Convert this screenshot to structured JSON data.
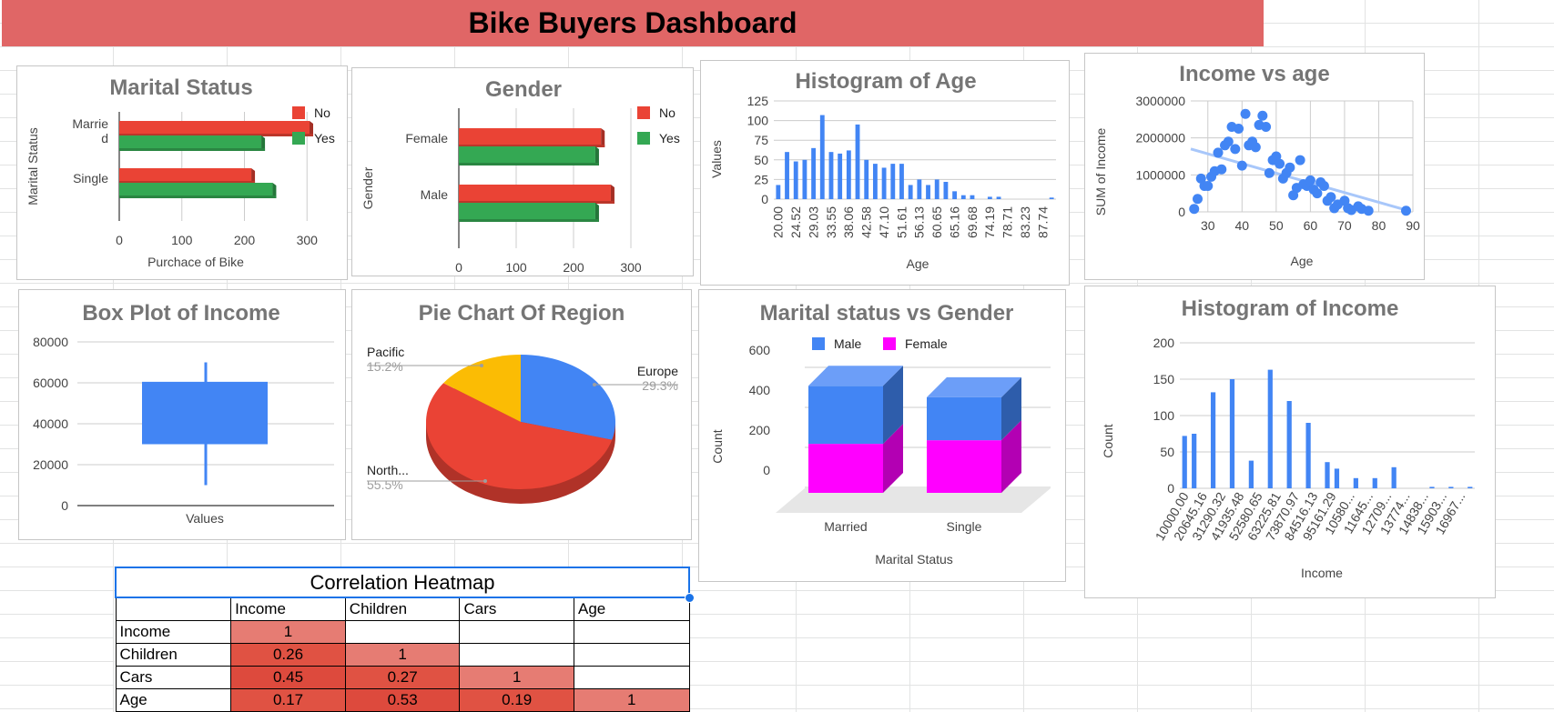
{
  "dashboard_title": "Bike Buyers Dashboard",
  "colors": {
    "red": "#ea4335",
    "green": "#34a853",
    "blue": "#4285f4",
    "yellow": "#fbbc04",
    "magenta": "#ff00ff",
    "banner": "#e06666"
  },
  "chart_data": [
    {
      "id": "marital",
      "type": "bar",
      "orientation": "horizontal",
      "title": "Marital Status",
      "categories": [
        "Marrie\nd",
        "Single"
      ],
      "series": [
        {
          "name": "No",
          "values": [
            304,
            211
          ]
        },
        {
          "name": "Yes",
          "values": [
            227,
            245
          ]
        }
      ],
      "xlabel": "Purchace of Bike",
      "ylabel": "Marital Status",
      "xlim": [
        0,
        400
      ],
      "xticks": [
        "0",
        "100",
        "200",
        "300",
        "400"
      ],
      "legend": "right"
    },
    {
      "id": "gender",
      "type": "bar",
      "orientation": "horizontal",
      "title": "Gender",
      "categories": [
        "Female",
        "Male"
      ],
      "series": [
        {
          "name": "No",
          "values": [
            248,
            265
          ]
        },
        {
          "name": "Yes",
          "values": [
            238,
            238
          ]
        }
      ],
      "xlabel": "",
      "ylabel": "Gender",
      "xlim": [
        0,
        300
      ],
      "xticks": [
        "0",
        "100",
        "200",
        "300"
      ],
      "legend": "right"
    },
    {
      "id": "age_hist",
      "type": "bar",
      "title": "Histogram of Age",
      "xlabel": "Age",
      "ylabel": "Values",
      "ylim": [
        0,
        125
      ],
      "yticks": [
        "0",
        "25",
        "50",
        "75",
        "100",
        "125"
      ],
      "xticks": [
        "20.00",
        "24.52",
        "29.03",
        "33.55",
        "38.06",
        "42.58",
        "47.10",
        "51.61",
        "56.13",
        "60.65",
        "65.16",
        "69.68",
        "74.19",
        "78.71",
        "83.23",
        "87.74"
      ],
      "values": [
        18,
        60,
        48,
        50,
        65,
        107,
        60,
        58,
        62,
        95,
        50,
        45,
        40,
        45,
        45,
        18,
        25,
        18,
        25,
        22,
        10,
        5,
        5,
        0,
        3,
        3,
        0,
        0,
        0,
        0,
        0,
        2
      ]
    },
    {
      "id": "income_age",
      "type": "scatter",
      "title": "Income vs age",
      "xlabel": "Age",
      "ylabel": "SUM of Income",
      "xlim": [
        25,
        90
      ],
      "xticks": [
        "30",
        "40",
        "50",
        "60",
        "70",
        "80",
        "90"
      ],
      "ylim": [
        0,
        3000000
      ],
      "yticks": [
        "0",
        "1000000",
        "2000000",
        "3000000"
      ],
      "points": [
        [
          26,
          80000
        ],
        [
          27,
          350000
        ],
        [
          28,
          900000
        ],
        [
          29,
          700000
        ],
        [
          30,
          700000
        ],
        [
          31,
          950000
        ],
        [
          32,
          1100000
        ],
        [
          33,
          1600000
        ],
        [
          34,
          1150000
        ],
        [
          35,
          1800000
        ],
        [
          36,
          1900000
        ],
        [
          37,
          2300000
        ],
        [
          38,
          1700000
        ],
        [
          39,
          2250000
        ],
        [
          40,
          1250000
        ],
        [
          41,
          2650000
        ],
        [
          42,
          1800000
        ],
        [
          43,
          1900000
        ],
        [
          44,
          1750000
        ],
        [
          45,
          2350000
        ],
        [
          46,
          2600000
        ],
        [
          47,
          2300000
        ],
        [
          48,
          1050000
        ],
        [
          49,
          1400000
        ],
        [
          50,
          1500000
        ],
        [
          51,
          1300000
        ],
        [
          52,
          900000
        ],
        [
          53,
          1050000
        ],
        [
          54,
          1200000
        ],
        [
          55,
          450000
        ],
        [
          56,
          650000
        ],
        [
          57,
          1400000
        ],
        [
          58,
          750000
        ],
        [
          59,
          700000
        ],
        [
          60,
          850000
        ],
        [
          61,
          600000
        ],
        [
          62,
          500000
        ],
        [
          63,
          800000
        ],
        [
          64,
          700000
        ],
        [
          65,
          300000
        ],
        [
          66,
          400000
        ],
        [
          67,
          100000
        ],
        [
          68,
          200000
        ],
        [
          70,
          300000
        ],
        [
          71,
          100000
        ],
        [
          72,
          50000
        ],
        [
          74,
          150000
        ],
        [
          75,
          80000
        ],
        [
          77,
          30000
        ],
        [
          88,
          30000
        ]
      ],
      "trendline": [
        [
          25,
          1700000
        ],
        [
          88,
          50000
        ]
      ]
    },
    {
      "id": "income_box",
      "type": "box",
      "title": "Box Plot of Income",
      "xlabel": "Values",
      "ylim": [
        0,
        80000
      ],
      "yticks": [
        "0",
        "20000",
        "40000",
        "60000",
        "80000"
      ],
      "low": 10000,
      "q1": 30000,
      "median": 60000,
      "q3": 60500,
      "high": 70000
    },
    {
      "id": "region_pie",
      "type": "pie",
      "title": "Pie Chart Of Region",
      "slices": [
        {
          "label": "Europe",
          "pct": "29.3%",
          "value": 29.3
        },
        {
          "label": "North...",
          "pct": "55.5%",
          "value": 55.5
        },
        {
          "label": "Pacific",
          "pct": "15.2%",
          "value": 15.2
        }
      ]
    },
    {
      "id": "marital_gender",
      "type": "bar",
      "stacked": true,
      "title": "Marital status vs Gender",
      "categories": [
        "Married",
        "Single"
      ],
      "series": [
        {
          "name": "Male",
          "values": [
            290,
            215
          ]
        },
        {
          "name": "Female",
          "values": [
            245,
            263
          ]
        }
      ],
      "xlabel": "Marital Status",
      "ylabel": "Count",
      "ylim": [
        0,
        600
      ],
      "yticks": [
        "0",
        "200",
        "400",
        "600"
      ],
      "legend": "top"
    },
    {
      "id": "income_hist",
      "type": "bar",
      "title": "Histogram of Income",
      "xlabel": "Income",
      "ylabel": "Count",
      "ylim": [
        0,
        200
      ],
      "yticks": [
        "0",
        "50",
        "100",
        "150",
        "200"
      ],
      "xticks": [
        "10000.00",
        "20645.16",
        "31290.32",
        "41935.48",
        "52580.65",
        "63225.81",
        "73870.97",
        "84516.13",
        "95161.29",
        "10580...",
        "11645...",
        "12709...",
        "13774...",
        "14838...",
        "15903...",
        "16967..."
      ],
      "values": [
        72,
        75,
        0,
        132,
        0,
        150,
        0,
        38,
        0,
        163,
        0,
        120,
        0,
        90,
        0,
        36,
        27,
        0,
        14,
        0,
        14,
        0,
        29,
        0,
        0,
        0,
        2,
        0,
        2,
        0,
        2
      ]
    }
  ],
  "heatmap": {
    "title": "Correlation Heatmap",
    "columns": [
      "",
      "Income",
      "Children",
      "Cars",
      "Age"
    ],
    "rows": [
      {
        "label": "Income",
        "cells": [
          "1",
          "",
          "",
          ""
        ]
      },
      {
        "label": "Children",
        "cells": [
          "0.26",
          "1",
          "",
          ""
        ]
      },
      {
        "label": "Cars",
        "cells": [
          "0.45",
          "0.27",
          "1",
          ""
        ]
      },
      {
        "label": "Age",
        "cells": [
          "0.17",
          "0.53",
          "0.19",
          "1"
        ]
      }
    ],
    "cell_colors": [
      [
        "#e67c73",
        "",
        "",
        ""
      ],
      [
        "#e05243",
        "#e67c73",
        "",
        ""
      ],
      [
        "#dd4a3d",
        "#e05243",
        "#e67c73",
        ""
      ],
      [
        "#e05243",
        "#dd4a3d",
        "#e05243",
        "#e67c73"
      ]
    ]
  }
}
